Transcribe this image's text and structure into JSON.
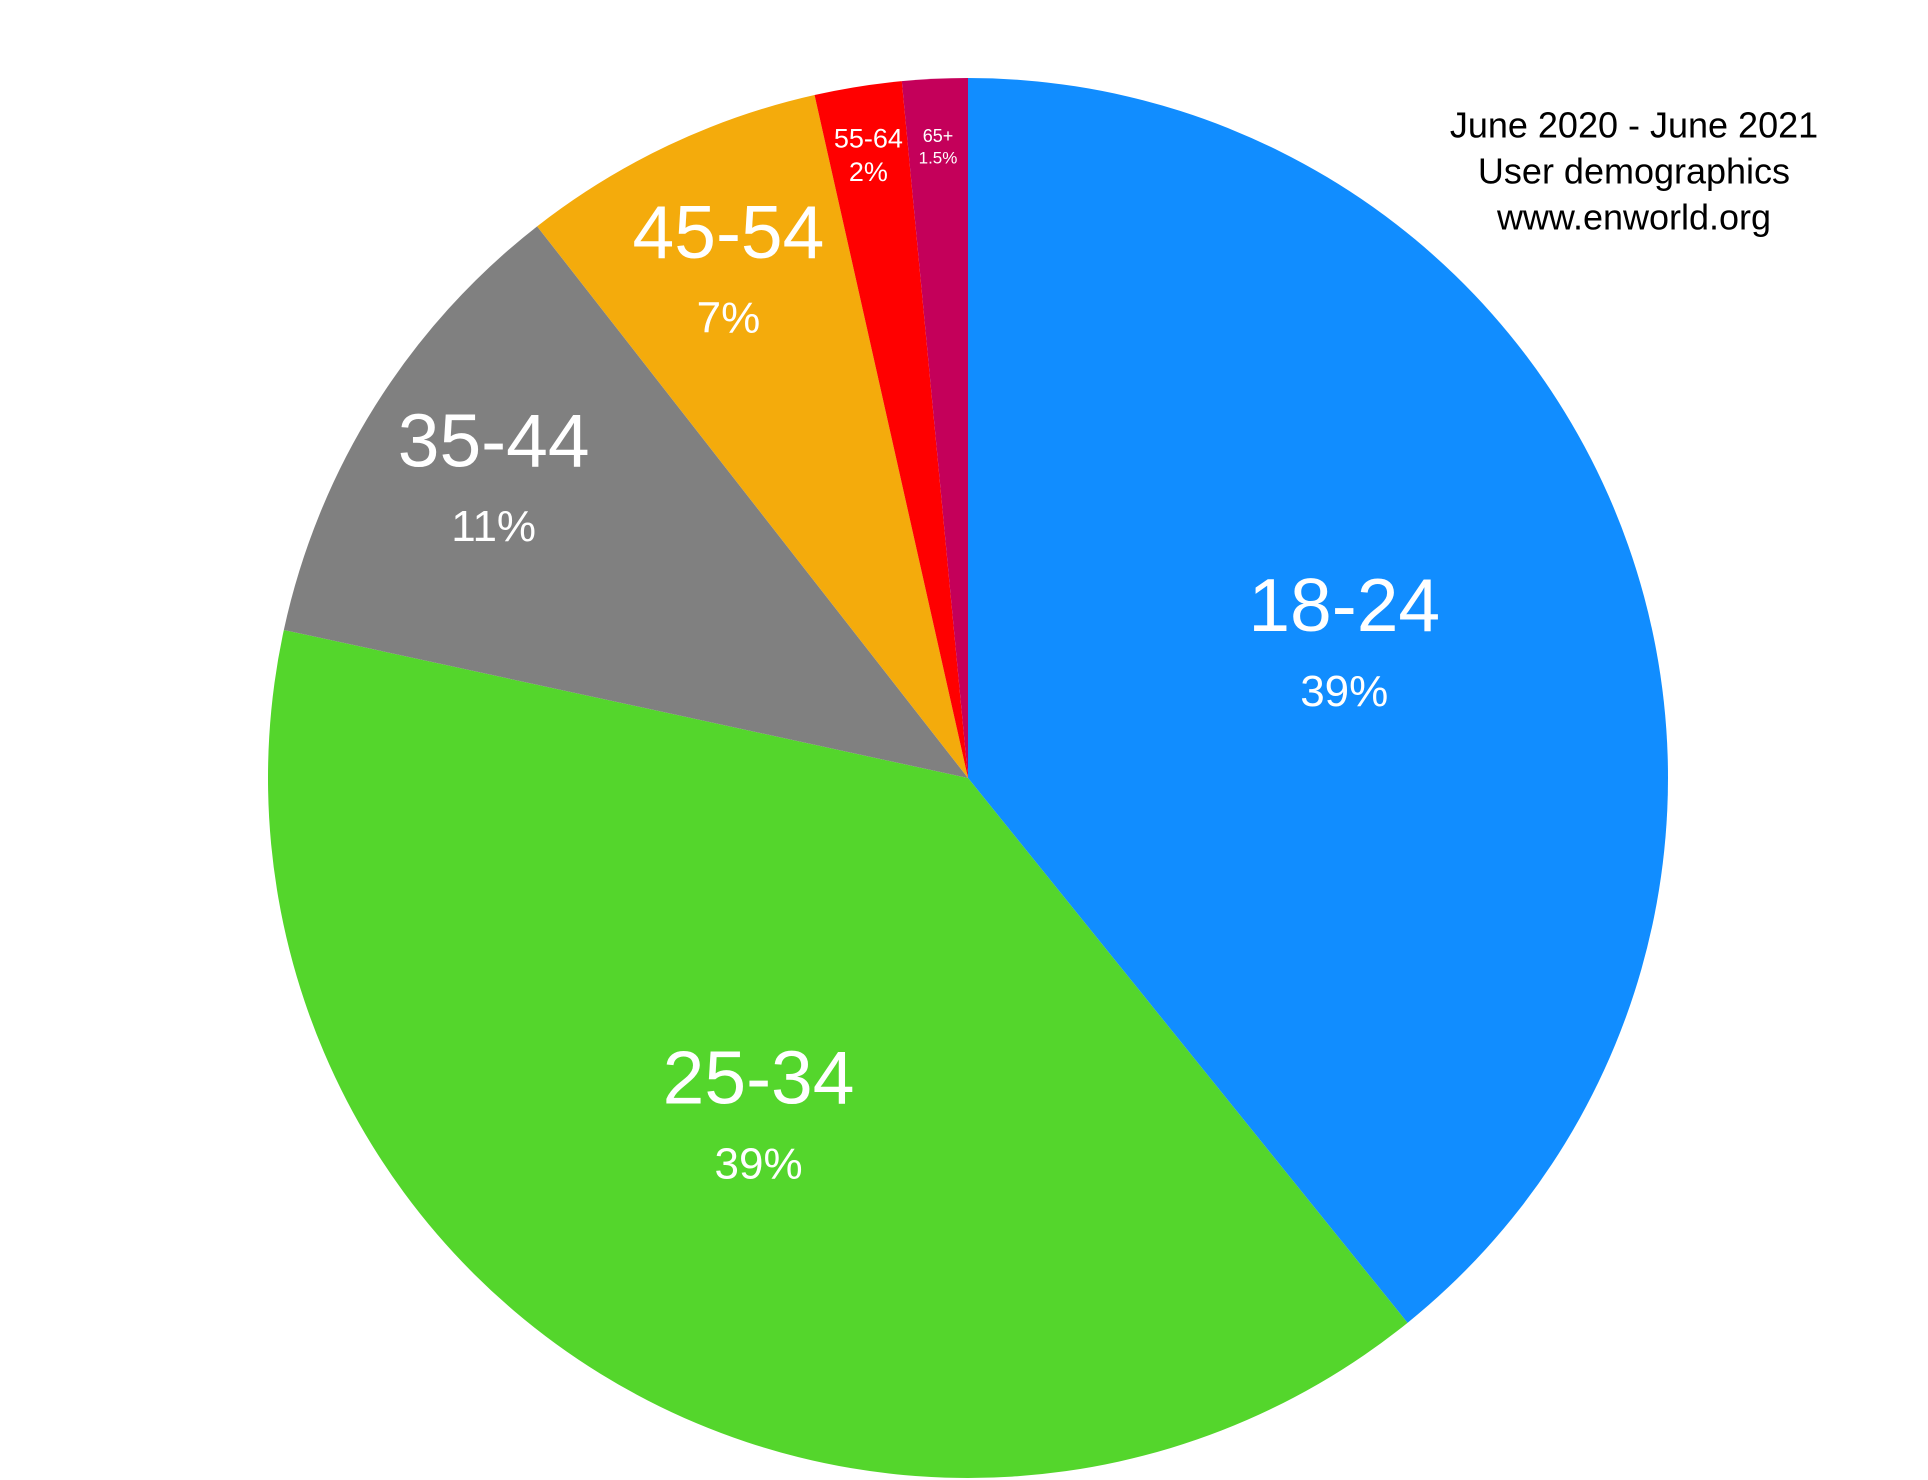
{
  "chart_data": {
    "type": "pie",
    "annotations": [
      "June 2020 - June 2021",
      "User demographics",
      "www.enworld.org"
    ],
    "categories": [
      "18-24",
      "25-34",
      "35-44",
      "45-54",
      "55-64",
      "65+"
    ],
    "values": [
      39,
      39,
      11,
      7,
      2,
      1.5
    ],
    "value_labels": [
      "39%",
      "39%",
      "11%",
      "7%",
      "2%",
      "1.5%"
    ],
    "colors": [
      "#118dff",
      "#54d62c",
      "#808080",
      "#f4ab0c",
      "#ff0000",
      "#c4005a"
    ]
  }
}
